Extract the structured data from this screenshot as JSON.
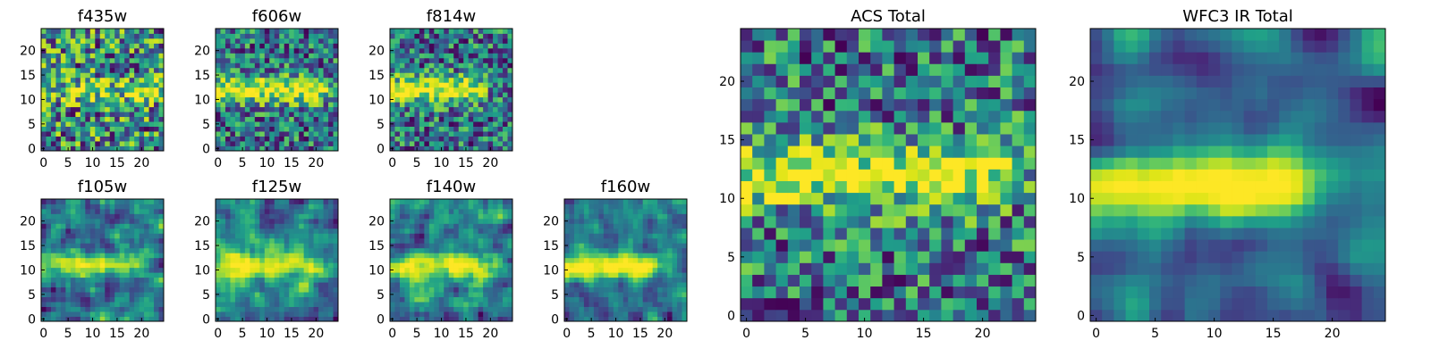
{
  "chart_data": [
    {
      "type": "heatmap",
      "title": "f435w",
      "grid": false,
      "shape": [
        25,
        25
      ],
      "xlim": [
        0,
        25
      ],
      "ylim": [
        0,
        25
      ],
      "xticks": [
        0,
        5,
        10,
        15,
        20
      ],
      "yticks": [
        0,
        5,
        10,
        15,
        20
      ],
      "colormap": "viridis",
      "pattern": "noise",
      "band_row": 12,
      "band_strength": 0.25,
      "band_length": 25,
      "seed": 11
    },
    {
      "type": "heatmap",
      "title": "f606w",
      "grid": false,
      "shape": [
        25,
        25
      ],
      "xlim": [
        0,
        25
      ],
      "ylim": [
        0,
        25
      ],
      "xticks": [
        0,
        5,
        10,
        15,
        20
      ],
      "yticks": [
        0,
        5,
        10,
        15,
        20
      ],
      "colormap": "viridis",
      "pattern": "noise",
      "band_row": 12,
      "band_strength": 0.6,
      "band_length": 20,
      "seed": 23
    },
    {
      "type": "heatmap",
      "title": "f814w",
      "grid": false,
      "shape": [
        25,
        25
      ],
      "xlim": [
        0,
        25
      ],
      "ylim": [
        0,
        25
      ],
      "xticks": [
        0,
        5,
        10,
        15,
        20
      ],
      "yticks": [
        0,
        5,
        10,
        15,
        20
      ],
      "colormap": "viridis",
      "pattern": "noise",
      "band_row": 12,
      "band_strength": 0.6,
      "band_length": 16,
      "seed": 37
    },
    {
      "type": "heatmap",
      "title": "f105w",
      "grid": false,
      "shape": [
        25,
        25
      ],
      "xlim": [
        0,
        25
      ],
      "ylim": [
        0,
        25
      ],
      "xticks": [
        0,
        5,
        10,
        15,
        20
      ],
      "yticks": [
        0,
        5,
        10,
        15,
        20
      ],
      "colormap": "viridis",
      "pattern": "blob",
      "band_row": 11,
      "band_strength": 0.45,
      "band_length": 18,
      "seed": 41
    },
    {
      "type": "heatmap",
      "title": "f125w",
      "grid": false,
      "shape": [
        25,
        25
      ],
      "xlim": [
        0,
        25
      ],
      "ylim": [
        0,
        25
      ],
      "xticks": [
        0,
        5,
        10,
        15,
        20
      ],
      "yticks": [
        0,
        5,
        10,
        15,
        20
      ],
      "colormap": "viridis",
      "pattern": "blob",
      "band_row": 11,
      "band_strength": 0.5,
      "band_length": 20,
      "seed": 53
    },
    {
      "type": "heatmap",
      "title": "f140w",
      "grid": false,
      "shape": [
        25,
        25
      ],
      "xlim": [
        0,
        25
      ],
      "ylim": [
        0,
        25
      ],
      "xticks": [
        0,
        5,
        10,
        15,
        20
      ],
      "yticks": [
        0,
        5,
        10,
        15,
        20
      ],
      "colormap": "viridis",
      "pattern": "blob",
      "band_row": 11,
      "band_strength": 0.5,
      "band_length": 18,
      "seed": 67
    },
    {
      "type": "heatmap",
      "title": "f160w",
      "grid": false,
      "shape": [
        25,
        25
      ],
      "xlim": [
        0,
        25
      ],
      "ylim": [
        0,
        25
      ],
      "xticks": [
        0,
        5,
        10,
        15,
        20
      ],
      "yticks": [
        0,
        5,
        10,
        15,
        20
      ],
      "colormap": "viridis",
      "pattern": "blob",
      "band_row": 11,
      "band_strength": 0.7,
      "band_length": 16,
      "seed": 79
    },
    {
      "type": "heatmap",
      "title": "ACS Total",
      "grid": false,
      "shape": [
        25,
        25
      ],
      "xlim": [
        0,
        25
      ],
      "ylim": [
        0,
        25
      ],
      "xticks": [
        0,
        5,
        10,
        15,
        20
      ],
      "yticks": [
        0,
        5,
        10,
        15,
        20
      ],
      "colormap": "viridis",
      "pattern": "noise",
      "band_row": 12,
      "band_strength": 0.55,
      "band_length": 20,
      "seed": 97
    },
    {
      "type": "heatmap",
      "title": "WFC3 IR Total",
      "grid": false,
      "shape": [
        25,
        25
      ],
      "xlim": [
        0,
        25
      ],
      "ylim": [
        0,
        25
      ],
      "xticks": [
        0,
        5,
        10,
        15,
        20
      ],
      "yticks": [
        0,
        5,
        10,
        15,
        20
      ],
      "colormap": "viridis",
      "pattern": "smooth",
      "band_row": 11,
      "band_strength": 0.75,
      "band_length": 16,
      "seed": 113
    }
  ]
}
